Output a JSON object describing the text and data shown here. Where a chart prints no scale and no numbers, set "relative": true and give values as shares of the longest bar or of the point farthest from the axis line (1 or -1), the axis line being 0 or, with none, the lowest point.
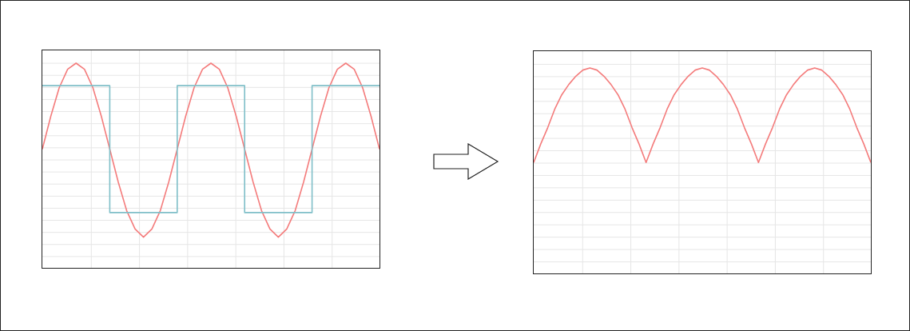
{
  "chart_data": [
    {
      "type": "line",
      "relative": true,
      "grid": true,
      "categories": [
        null,
        null,
        null,
        null,
        null,
        null,
        null,
        null,
        null,
        null,
        null,
        null,
        null,
        null,
        null,
        null,
        null,
        null,
        null,
        null,
        null,
        null,
        null,
        null,
        null,
        null,
        null,
        null,
        null,
        null,
        null,
        null,
        null,
        null,
        null,
        null,
        null,
        null,
        null,
        null,
        null
      ],
      "series": [
        {
          "color": "#f47c7c",
          "values": [
            0.58,
            0.74,
            0.88,
            0.97,
            1,
            0.97,
            0.88,
            0.74,
            0.58,
            0.42,
            0.28,
            0.19,
            0.15,
            0.19,
            0.28,
            0.42,
            0.58,
            0.74,
            0.88,
            0.97,
            1,
            0.97,
            0.88,
            0.74,
            0.58,
            0.42,
            0.28,
            0.19,
            0.15,
            0.19,
            0.28,
            0.42,
            0.58,
            0.74,
            0.88,
            0.97,
            1,
            0.97,
            0.88,
            0.74,
            0.58
          ]
        },
        {
          "type": "step",
          "color": "#7fbfc8",
          "values": [
            0.89,
            0.89,
            0.89,
            0.89,
            0.89,
            0.89,
            0.89,
            0.89,
            0.27,
            0.27,
            0.27,
            0.27,
            0.27,
            0.27,
            0.27,
            0.27,
            0.89,
            0.89,
            0.89,
            0.89,
            0.89,
            0.89,
            0.89,
            0.89,
            0.27,
            0.27,
            0.27,
            0.27,
            0.27,
            0.27,
            0.27,
            0.27,
            0.89,
            0.89,
            0.89,
            0.89,
            0.89,
            0.89,
            0.89,
            0.89,
            0.89
          ]
        }
      ]
    },
    {
      "type": "line",
      "relative": true,
      "grid": true,
      "categories": [
        null,
        null,
        null,
        null,
        null,
        null,
        null,
        null,
        null,
        null,
        null,
        null,
        null,
        null,
        null,
        null,
        null,
        null,
        null,
        null,
        null,
        null,
        null,
        null,
        null,
        null,
        null,
        null,
        null,
        null,
        null,
        null,
        null,
        null,
        null,
        null,
        null,
        null,
        null,
        null,
        null,
        null,
        null,
        null,
        null,
        null,
        null,
        null,
        null
      ],
      "series": [
        {
          "color": "#f47c7c",
          "values": [
            0.54,
            0.63,
            0.71,
            0.8,
            0.87,
            0.92,
            0.96,
            0.99,
            1,
            0.99,
            0.96,
            0.92,
            0.87,
            0.8,
            0.71,
            0.63,
            0.54,
            0.63,
            0.71,
            0.8,
            0.87,
            0.92,
            0.96,
            0.99,
            1,
            0.99,
            0.96,
            0.92,
            0.87,
            0.8,
            0.71,
            0.63,
            0.54,
            0.63,
            0.71,
            0.8,
            0.87,
            0.92,
            0.96,
            0.99,
            1,
            0.99,
            0.96,
            0.92,
            0.87,
            0.8,
            0.71,
            0.63,
            0.54
          ]
        }
      ]
    }
  ]
}
